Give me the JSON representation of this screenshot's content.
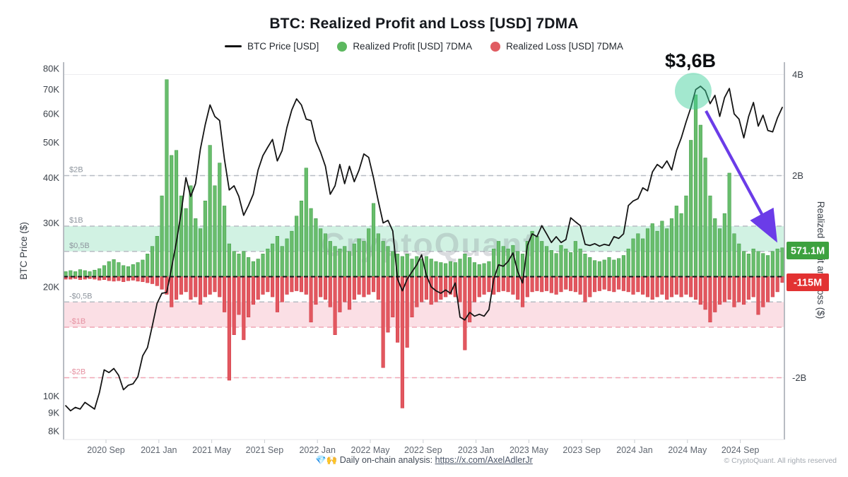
{
  "title": "BTC: Realized Profit and Loss [USD] 7DMA",
  "legend": {
    "items": [
      {
        "label": "BTC Price [USD]",
        "marker": "line",
        "color": "#141414"
      },
      {
        "label": "Realized Profit [USD] 7DMA",
        "marker": "dot",
        "color": "#5cb85f"
      },
      {
        "label": "Realized Loss [USD] 7DMA",
        "marker": "dot",
        "color": "#e05c62"
      }
    ]
  },
  "watermark": "CryptoQuant",
  "annotation": {
    "label": "$3,6B",
    "refers_to": "2024 realized profit peak",
    "peak_value_b": 3.6,
    "arrow_color": "#6b3ce8",
    "circle_color": "#3ecf9a"
  },
  "badges": {
    "profit_label": "571.1M",
    "profit_color": "#3da13f",
    "loss_label": "-115M",
    "loss_color": "#e23232"
  },
  "footer": {
    "text": "💎🙌 Daily on-chain analysis: ",
    "link_text": "https://x.com/AxelAdlerJr",
    "copyright": "© CryptoQuant. All rights reserved"
  },
  "chart_data": {
    "type": "combo",
    "title": "BTC: Realized Profit and Loss [USD] 7DMA",
    "x_tick_labels": [
      "2020 Sep",
      "2021 Jan",
      "2021 May",
      "2021 Sep",
      "2022 Jan",
      "2022 May",
      "2022 Sep",
      "2023 Jan",
      "2023 May",
      "2023 Sep",
      "2024 Jan",
      "2024 May",
      "2024 Sep"
    ],
    "x_range": [
      "2020 Jun",
      "2024 Oct"
    ],
    "left_axis": {
      "label": "BTC Price ($)",
      "scale": "log",
      "unit": "USD",
      "tick_labels": [
        "80K",
        "70K",
        "60K",
        "50K",
        "40K",
        "30K",
        "20K",
        "10K",
        "9K",
        "8K"
      ],
      "tick_values": [
        80,
        70,
        60,
        50,
        40,
        30,
        20,
        10,
        9,
        8
      ],
      "range_k": [
        8,
        80
      ]
    },
    "right_axis": {
      "label": "Realized Profit and Loss ($)",
      "scale": "linear",
      "unit": "USD billions",
      "tick_labels": [
        "4B",
        "2B",
        "-2B"
      ],
      "tick_values": [
        4,
        2,
        -2
      ],
      "range_b": [
        -3.2,
        4.25
      ]
    },
    "reference_lines": [
      {
        "label": "$2B",
        "value": 2,
        "tone": "gray"
      },
      {
        "label": "$1B",
        "value": 1,
        "tone": "gray"
      },
      {
        "label": "$0,5B",
        "value": 0.5,
        "tone": "gray"
      },
      {
        "label": "-$0,5B",
        "value": -0.5,
        "tone": "gray"
      },
      {
        "label": "-$1B",
        "value": -1,
        "tone": "pink"
      },
      {
        "label": "-$2B",
        "value": -2,
        "tone": "pink"
      }
    ],
    "bands": [
      {
        "from_b": 0.5,
        "to_b": 1.0,
        "color": "#c9f0de"
      },
      {
        "from_b": -1.0,
        "to_b": -0.5,
        "color": "#fad9e1"
      }
    ],
    "grid": "dashed-reference-lines",
    "legend_position": "top",
    "latest_values": {
      "realized_profit_7dma": "571.1M",
      "realized_loss_7dma": "-115M"
    },
    "series": [
      {
        "name": "BTC Price [USD]",
        "type": "line",
        "axis": "left",
        "color": "#141414",
        "unit": "thousand USD",
        "values": [
          9.4,
          9.1,
          9.3,
          9.2,
          9.6,
          9.4,
          9.2,
          10.2,
          11.8,
          11.6,
          11.9,
          11.4,
          10.4,
          10.7,
          10.8,
          11.3,
          12.9,
          13.6,
          15.6,
          18.0,
          19.2,
          19.3,
          22.5,
          26.5,
          32.0,
          40.0,
          35.5,
          38.5,
          48.0,
          56.0,
          63.5,
          59.0,
          57.5,
          45.0,
          37.0,
          38.0,
          35.5,
          31.5,
          33.5,
          36.0,
          42.0,
          46.0,
          48.5,
          51.0,
          44.5,
          47.5,
          55.0,
          61.5,
          66.0,
          63.5,
          58.0,
          57.5,
          50.5,
          47.0,
          43.0,
          36.0,
          38.0,
          43.5,
          38.5,
          43.0,
          39.0,
          42.0,
          46.5,
          45.5,
          40.0,
          34.5,
          30.0,
          30.5,
          28.5,
          21.0,
          19.5,
          21.0,
          22.0,
          23.0,
          24.5,
          21.5,
          20.0,
          19.5,
          19.2,
          19.6,
          19.2,
          20.5,
          16.5,
          16.2,
          17.0,
          16.6,
          16.8,
          16.6,
          17.3,
          21.0,
          23.0,
          22.8,
          23.5,
          24.8,
          22.0,
          20.5,
          26.0,
          28.0,
          27.5,
          29.5,
          28.0,
          26.5,
          27.5,
          26.5,
          27.0,
          31.0,
          30.2,
          29.5,
          26.2,
          26.0,
          26.3,
          25.9,
          26.2,
          26.0,
          27.5,
          27.2,
          28.0,
          33.5,
          34.5,
          35.0,
          37.5,
          36.8,
          41.5,
          43.5,
          42.5,
          44.5,
          42.0,
          47.5,
          51.5,
          57.0,
          62.5,
          70.0,
          71.5,
          69.5,
          64.0,
          67.5,
          59.0,
          66.5,
          70.5,
          60.0,
          58.0,
          51.5,
          59.0,
          64.5,
          55.5,
          59.5,
          54.0,
          53.5,
          58.5,
          62.5
        ]
      },
      {
        "name": "Realized Profit [USD] 7DMA",
        "type": "bar",
        "axis": "right",
        "color": "#68bd6c",
        "unit": "billion USD",
        "values": [
          0.1,
          0.12,
          0.1,
          0.14,
          0.12,
          0.1,
          0.13,
          0.16,
          0.22,
          0.3,
          0.34,
          0.28,
          0.22,
          0.2,
          0.24,
          0.28,
          0.33,
          0.45,
          0.6,
          0.8,
          1.6,
          3.9,
          2.4,
          2.5,
          1.6,
          1.35,
          1.8,
          1.15,
          0.95,
          1.5,
          2.6,
          1.8,
          2.25,
          1.4,
          0.65,
          0.5,
          0.45,
          0.5,
          0.38,
          0.3,
          0.35,
          0.45,
          0.55,
          0.65,
          0.8,
          0.6,
          0.75,
          0.9,
          1.2,
          1.5,
          2.15,
          1.35,
          1.15,
          0.95,
          0.85,
          0.7,
          0.6,
          0.55,
          0.6,
          0.5,
          0.65,
          0.75,
          0.7,
          0.95,
          1.45,
          0.85,
          0.7,
          0.6,
          0.5,
          0.45,
          0.4,
          0.45,
          0.35,
          0.4,
          0.35,
          0.4,
          0.35,
          0.3,
          0.28,
          0.26,
          0.3,
          0.28,
          0.35,
          0.45,
          0.38,
          0.28,
          0.24,
          0.26,
          0.3,
          0.55,
          0.7,
          0.6,
          0.55,
          0.62,
          0.5,
          0.45,
          0.7,
          0.9,
          0.8,
          0.7,
          0.6,
          0.52,
          0.46,
          0.62,
          0.55,
          0.48,
          0.7,
          0.55,
          0.45,
          0.38,
          0.32,
          0.3,
          0.33,
          0.38,
          0.33,
          0.36,
          0.42,
          0.55,
          0.75,
          0.85,
          0.75,
          0.95,
          1.05,
          0.9,
          1.1,
          0.95,
          1.15,
          1.4,
          1.25,
          1.6,
          2.7,
          3.6,
          3.0,
          2.35,
          1.6,
          1.15,
          0.95,
          1.25,
          2.05,
          0.85,
          0.65,
          0.5,
          0.45,
          0.55,
          0.5,
          0.46,
          0.42,
          0.5,
          0.55,
          0.571
        ]
      },
      {
        "name": "Realized Loss [USD] 7DMA",
        "type": "bar",
        "axis": "right",
        "color": "#e2575f",
        "unit": "billion USD",
        "values": [
          -0.05,
          -0.05,
          -0.04,
          -0.06,
          -0.05,
          -0.04,
          -0.05,
          -0.07,
          -0.06,
          -0.08,
          -0.09,
          -0.08,
          -0.1,
          -0.08,
          -0.07,
          -0.09,
          -0.1,
          -0.12,
          -0.14,
          -0.18,
          -0.25,
          -0.35,
          -0.6,
          -0.45,
          -0.35,
          -0.3,
          -0.45,
          -0.4,
          -0.55,
          -0.4,
          -0.35,
          -0.3,
          -0.4,
          -0.7,
          -2.05,
          -1.15,
          -0.75,
          -1.25,
          -0.8,
          -0.55,
          -0.45,
          -0.35,
          -0.3,
          -0.4,
          -0.7,
          -0.5,
          -0.35,
          -0.3,
          -0.28,
          -0.3,
          -0.35,
          -0.9,
          -0.55,
          -0.4,
          -0.45,
          -0.6,
          -1.15,
          -0.7,
          -0.5,
          -0.65,
          -0.45,
          -0.35,
          -0.4,
          -0.35,
          -0.3,
          -0.45,
          -1.8,
          -1.1,
          -0.8,
          -1.3,
          -2.6,
          -1.4,
          -0.8,
          -0.6,
          -0.5,
          -0.45,
          -0.55,
          -0.5,
          -0.45,
          -0.4,
          -0.35,
          -0.4,
          -0.5,
          -1.45,
          -0.9,
          -0.5,
          -0.4,
          -0.35,
          -0.3,
          -0.35,
          -0.3,
          -0.28,
          -0.3,
          -0.35,
          -0.45,
          -0.6,
          -0.4,
          -0.3,
          -0.28,
          -0.3,
          -0.28,
          -0.32,
          -0.35,
          -0.3,
          -0.25,
          -0.28,
          -0.3,
          -0.35,
          -0.5,
          -0.4,
          -0.3,
          -0.28,
          -0.25,
          -0.28,
          -0.3,
          -0.25,
          -0.28,
          -0.3,
          -0.35,
          -0.3,
          -0.35,
          -0.4,
          -0.45,
          -0.4,
          -0.35,
          -0.45,
          -0.4,
          -0.35,
          -0.4,
          -0.35,
          -0.4,
          -0.45,
          -0.55,
          -0.65,
          -0.9,
          -0.7,
          -0.55,
          -0.5,
          -0.45,
          -0.6,
          -0.5,
          -0.55,
          -0.45,
          -0.4,
          -0.75,
          -0.6,
          -0.5,
          -0.4,
          -0.3,
          -0.115
        ]
      }
    ],
    "annotation": {
      "text": "$3,6B",
      "refers_to": "realized profit spike at 2024 price top, arrow points to latest 571.1M value"
    }
  }
}
